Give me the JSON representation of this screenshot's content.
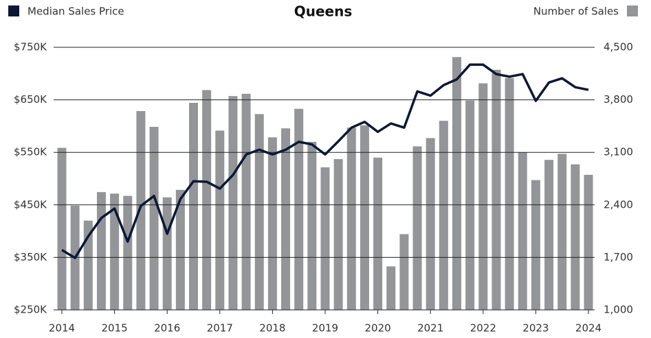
{
  "chart_data": {
    "type": "combo",
    "title": "Queens",
    "categories": [
      "2014",
      null,
      null,
      null,
      "2015",
      null,
      null,
      null,
      "2016",
      null,
      null,
      null,
      "2017",
      null,
      null,
      null,
      "2018",
      null,
      null,
      null,
      "2019",
      null,
      null,
      null,
      "2020",
      null,
      null,
      null,
      "2021",
      null,
      null,
      null,
      "2022",
      null,
      null,
      null,
      "2023",
      null,
      null,
      null,
      "2024"
    ],
    "series": [
      {
        "name": "Number of Sales",
        "type": "bar",
        "axis": "y2",
        "color": "#939598",
        "values": [
          3160,
          2390,
          2190,
          2570,
          2550,
          2520,
          3650,
          3440,
          2500,
          2600,
          3760,
          3930,
          3390,
          3850,
          3880,
          3610,
          3300,
          3420,
          3680,
          3240,
          2900,
          3010,
          3430,
          3460,
          3030,
          1580,
          2010,
          3180,
          3290,
          3520,
          4370,
          3790,
          4020,
          4200,
          4090,
          3100,
          2730,
          3000,
          3080,
          2940,
          2800
        ]
      },
      {
        "name": "Median Sales Price",
        "type": "line",
        "axis": "y",
        "color": "#0c1833",
        "values": [
          364000,
          349000,
          390000,
          425000,
          443000,
          380000,
          448000,
          467000,
          395000,
          461000,
          495000,
          494000,
          481000,
          507000,
          546000,
          555000,
          546000,
          555000,
          570000,
          565000,
          546000,
          571000,
          597000,
          608000,
          589000,
          605000,
          597000,
          666000,
          658000,
          678000,
          689000,
          717000,
          717000,
          699000,
          694000,
          699000,
          648000,
          683000,
          691000,
          674000,
          669000
        ]
      }
    ],
    "ylim": [
      250000,
      750000
    ],
    "yticks": [
      {
        "value": 250000,
        "label": "$250K"
      },
      {
        "value": 350000,
        "label": "$350K"
      },
      {
        "value": 450000,
        "label": "$450K"
      },
      {
        "value": 550000,
        "label": "$550K"
      },
      {
        "value": 650000,
        "label": "$650K"
      },
      {
        "value": 750000,
        "label": "$750K"
      }
    ],
    "y2lim": [
      1000,
      4500
    ],
    "y2ticks": [
      {
        "value": 1000,
        "label": "1,000"
      },
      {
        "value": 1700,
        "label": "1,700"
      },
      {
        "value": 2400,
        "label": "2,400"
      },
      {
        "value": 3100,
        "label": "3,100"
      },
      {
        "value": 3800,
        "label": "3,800"
      },
      {
        "value": 4500,
        "label": "4,500"
      }
    ],
    "grid": true
  }
}
